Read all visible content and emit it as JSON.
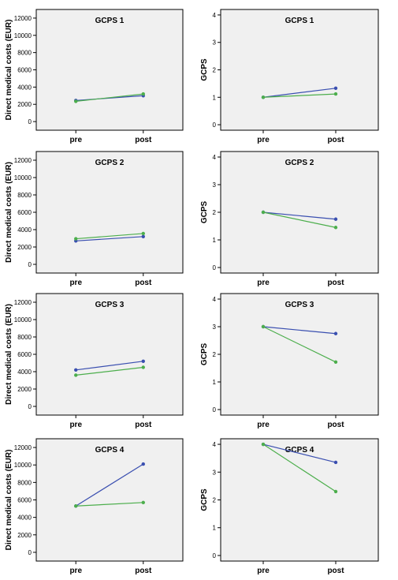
{
  "colors": {
    "series_1": "#3a4fb0",
    "series_2": "#4cae4c",
    "panel_bg": "#f0f0f0",
    "panel_border": "#000000"
  },
  "chart_data": [
    {
      "type": "line",
      "title": "GCPS 1",
      "ylabel": "Direct medical costs  (EUR)",
      "xlabel": "",
      "categories": [
        "pre",
        "post"
      ],
      "ylim": [
        -1000,
        13000
      ],
      "yticks": [
        0,
        2000,
        4000,
        6000,
        8000,
        10000,
        12000
      ],
      "grid": false,
      "series": [
        {
          "values": [
            2450,
            3000
          ]
        },
        {
          "values": [
            2350,
            3200
          ]
        }
      ]
    },
    {
      "type": "line",
      "title": "GCPS 1",
      "ylabel": "GCPS",
      "xlabel": "",
      "categories": [
        "pre",
        "post"
      ],
      "ylim": [
        -0.2,
        4.2
      ],
      "yticks": [
        0,
        1,
        2,
        3,
        4
      ],
      "grid": false,
      "series": [
        {
          "values": [
            1.0,
            1.33
          ]
        },
        {
          "values": [
            1.0,
            1.12
          ]
        }
      ]
    },
    {
      "type": "line",
      "title": "GCPS 2",
      "ylabel": "Direct medical costs  (EUR)",
      "xlabel": "",
      "categories": [
        "pre",
        "post"
      ],
      "ylim": [
        -1000,
        13000
      ],
      "yticks": [
        0,
        2000,
        4000,
        6000,
        8000,
        10000,
        12000
      ],
      "grid": false,
      "series": [
        {
          "values": [
            2700,
            3200
          ]
        },
        {
          "values": [
            2950,
            3550
          ]
        }
      ]
    },
    {
      "type": "line",
      "title": "GCPS 2",
      "ylabel": "GCPS",
      "xlabel": "",
      "categories": [
        "pre",
        "post"
      ],
      "ylim": [
        -0.2,
        4.2
      ],
      "yticks": [
        0,
        1,
        2,
        3,
        4
      ],
      "grid": false,
      "series": [
        {
          "values": [
            2.0,
            1.75
          ]
        },
        {
          "values": [
            2.0,
            1.45
          ]
        }
      ]
    },
    {
      "type": "line",
      "title": "GCPS 3",
      "ylabel": "Direct medical costs  (EUR)",
      "xlabel": "",
      "categories": [
        "pre",
        "post"
      ],
      "ylim": [
        -1000,
        13000
      ],
      "yticks": [
        0,
        2000,
        4000,
        6000,
        8000,
        10000,
        12000
      ],
      "grid": false,
      "series": [
        {
          "values": [
            4200,
            5200
          ]
        },
        {
          "values": [
            3600,
            4500
          ]
        }
      ]
    },
    {
      "type": "line",
      "title": "GCPS 3",
      "ylabel": "GCPS",
      "xlabel": "",
      "categories": [
        "pre",
        "post"
      ],
      "ylim": [
        -0.2,
        4.2
      ],
      "yticks": [
        0,
        1,
        2,
        3,
        4
      ],
      "grid": false,
      "series": [
        {
          "values": [
            3.0,
            2.75
          ]
        },
        {
          "values": [
            3.0,
            1.72
          ]
        }
      ]
    },
    {
      "type": "line",
      "title": "GCPS 4",
      "ylabel": "Direct medical costs  (EUR)",
      "xlabel": "",
      "categories": [
        "pre",
        "post"
      ],
      "ylim": [
        -1000,
        13000
      ],
      "yticks": [
        0,
        2000,
        4000,
        6000,
        8000,
        10000,
        12000
      ],
      "grid": false,
      "series": [
        {
          "values": [
            5300,
            10100
          ]
        },
        {
          "values": [
            5300,
            5700
          ]
        }
      ]
    },
    {
      "type": "line",
      "title": "GCPS 4",
      "ylabel": "GCPS",
      "xlabel": "",
      "categories": [
        "pre",
        "post"
      ],
      "ylim": [
        -0.2,
        4.2
      ],
      "yticks": [
        0,
        1,
        2,
        3,
        4
      ],
      "grid": false,
      "series": [
        {
          "values": [
            4.0,
            3.35
          ]
        },
        {
          "values": [
            4.0,
            2.3
          ]
        }
      ]
    }
  ]
}
